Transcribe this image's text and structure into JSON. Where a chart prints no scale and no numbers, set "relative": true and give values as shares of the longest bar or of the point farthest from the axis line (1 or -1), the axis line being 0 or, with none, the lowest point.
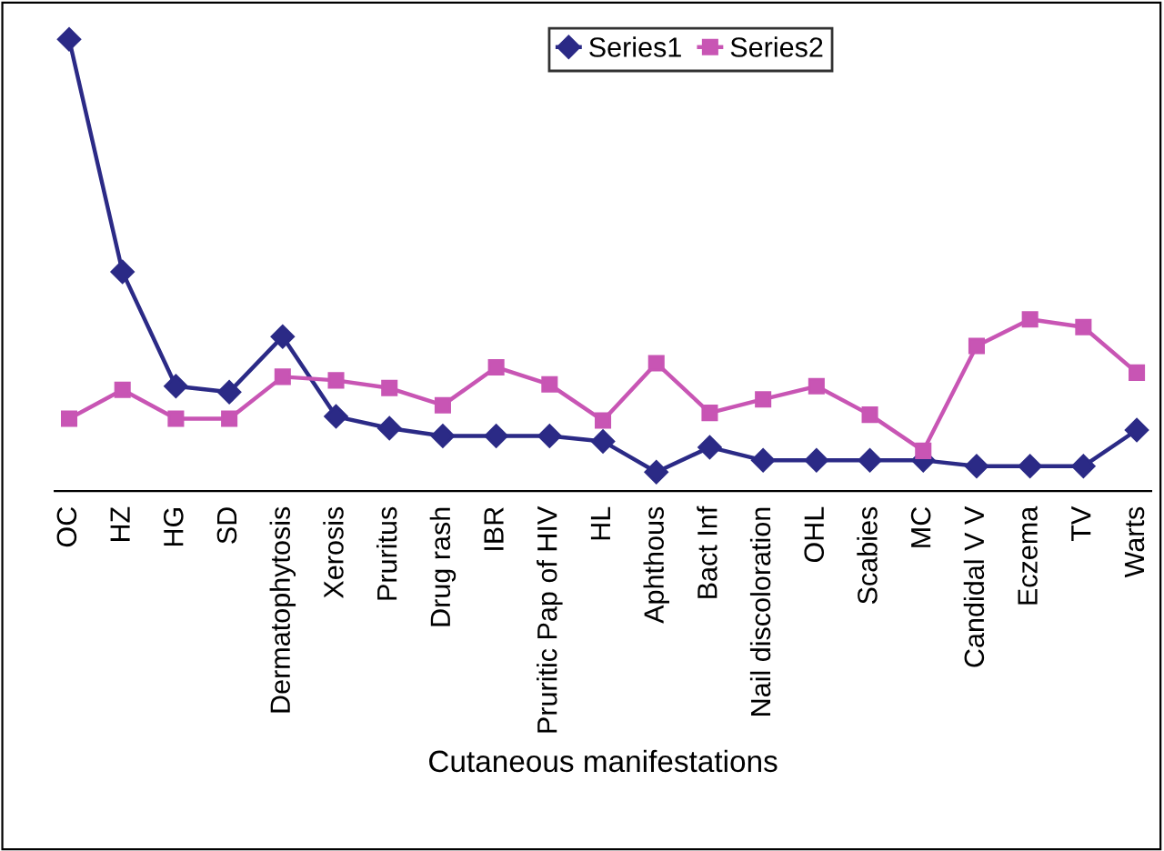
{
  "chart_data": {
    "type": "line",
    "relative": true,
    "xlabel": "Cutaneous manifestations",
    "categories": [
      "OC",
      "HZ",
      "HG",
      "SD",
      "Dermatophytosis",
      "Xerosis",
      "Pruritus",
      "Drug rash",
      "IBR",
      "Pruritic Pap of HIV",
      "HL",
      "Aphthous",
      "Bact Inf",
      "Nail discoloration",
      "OHL",
      "Scabies",
      "MC",
      "Candidal V V",
      "Eczema",
      "TV",
      "Warts"
    ],
    "series": [
      {
        "name": "Series1",
        "color": "#2b2a86",
        "marker": "diamond",
        "values": [
          1,
          0.485,
          0.232,
          0.219,
          0.342,
          0.165,
          0.139,
          0.122,
          0.122,
          0.122,
          0.11,
          0.042,
          0.097,
          0.068,
          0.068,
          0.068,
          0.068,
          0.055,
          0.055,
          0.055,
          0.135
        ]
      },
      {
        "name": "Series2",
        "color": "#c855b4",
        "marker": "square",
        "values": [
          0.16,
          0.224,
          0.16,
          0.16,
          0.253,
          0.245,
          0.228,
          0.19,
          0.274,
          0.236,
          0.156,
          0.283,
          0.173,
          0.203,
          0.232,
          0.169,
          0.089,
          0.321,
          0.38,
          0.363,
          0.262
        ]
      }
    ],
    "legend": "top",
    "grid": false,
    "line_style": "solid"
  }
}
